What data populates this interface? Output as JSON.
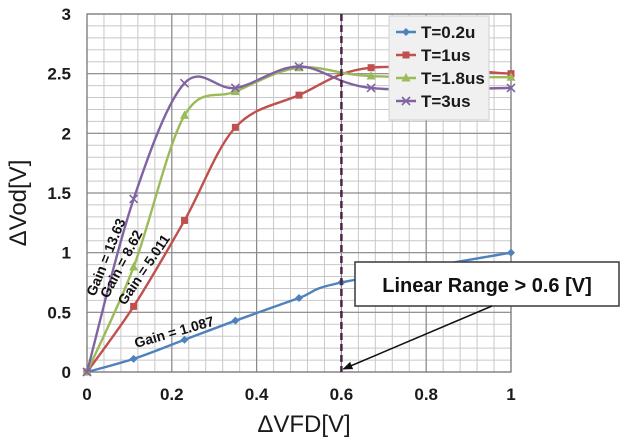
{
  "chart_data": {
    "type": "line",
    "xlabel": "ΔVFD[V]",
    "ylabel": "ΔVod[V]",
    "xlim": [
      0,
      1
    ],
    "ylim": [
      0,
      3
    ],
    "x_major_ticks": [
      "0",
      "0.2",
      "0.4",
      "0.6",
      "0.8",
      "1"
    ],
    "y_major_ticks": [
      "0",
      "0.5",
      "1",
      "1.5",
      "2",
      "2.5",
      "3"
    ],
    "grid": true,
    "legend_position": "top-right",
    "series": [
      {
        "name": "T=0.2u",
        "color": "#4f81bd",
        "marker": "diamond",
        "x": [
          0,
          0.11,
          0.23,
          0.35,
          0.5,
          0.6,
          1.0
        ],
        "y": [
          0,
          0.11,
          0.27,
          0.43,
          0.62,
          0.75,
          1.0
        ]
      },
      {
        "name": "T=1us",
        "color": "#c0504d",
        "marker": "square",
        "x": [
          0,
          0.11,
          0.23,
          0.35,
          0.5,
          0.67,
          1.0
        ],
        "y": [
          0,
          0.55,
          1.27,
          2.05,
          2.32,
          2.55,
          2.5
        ]
      },
      {
        "name": "T=1.8us",
        "color": "#9bbb59",
        "marker": "triangle",
        "x": [
          0,
          0.11,
          0.23,
          0.35,
          0.5,
          0.67,
          1.0
        ],
        "y": [
          0,
          0.88,
          2.15,
          2.35,
          2.55,
          2.48,
          2.47
        ]
      },
      {
        "name": "T=3us",
        "color": "#8064a2",
        "marker": "x",
        "x": [
          0,
          0.11,
          0.23,
          0.35,
          0.5,
          0.67,
          1.0
        ],
        "y": [
          0,
          1.45,
          2.42,
          2.38,
          2.56,
          2.38,
          2.38
        ]
      }
    ],
    "reference_line": {
      "x": 0.6,
      "style": "dashed",
      "color": "#4b2346"
    },
    "annotations": [
      {
        "text": "Gain = 13.63",
        "series": "T=3us"
      },
      {
        "text": "Gain = 8.62",
        "series": "T=1.8us"
      },
      {
        "text": "Gain = 5.011",
        "series": "T=1us"
      },
      {
        "text": "Gain = 1.087",
        "series": "T=0.2u"
      },
      {
        "text": "Linear Range > 0.6 [V]",
        "arrow_to": {
          "x": 0.6,
          "y": 0
        }
      }
    ]
  }
}
